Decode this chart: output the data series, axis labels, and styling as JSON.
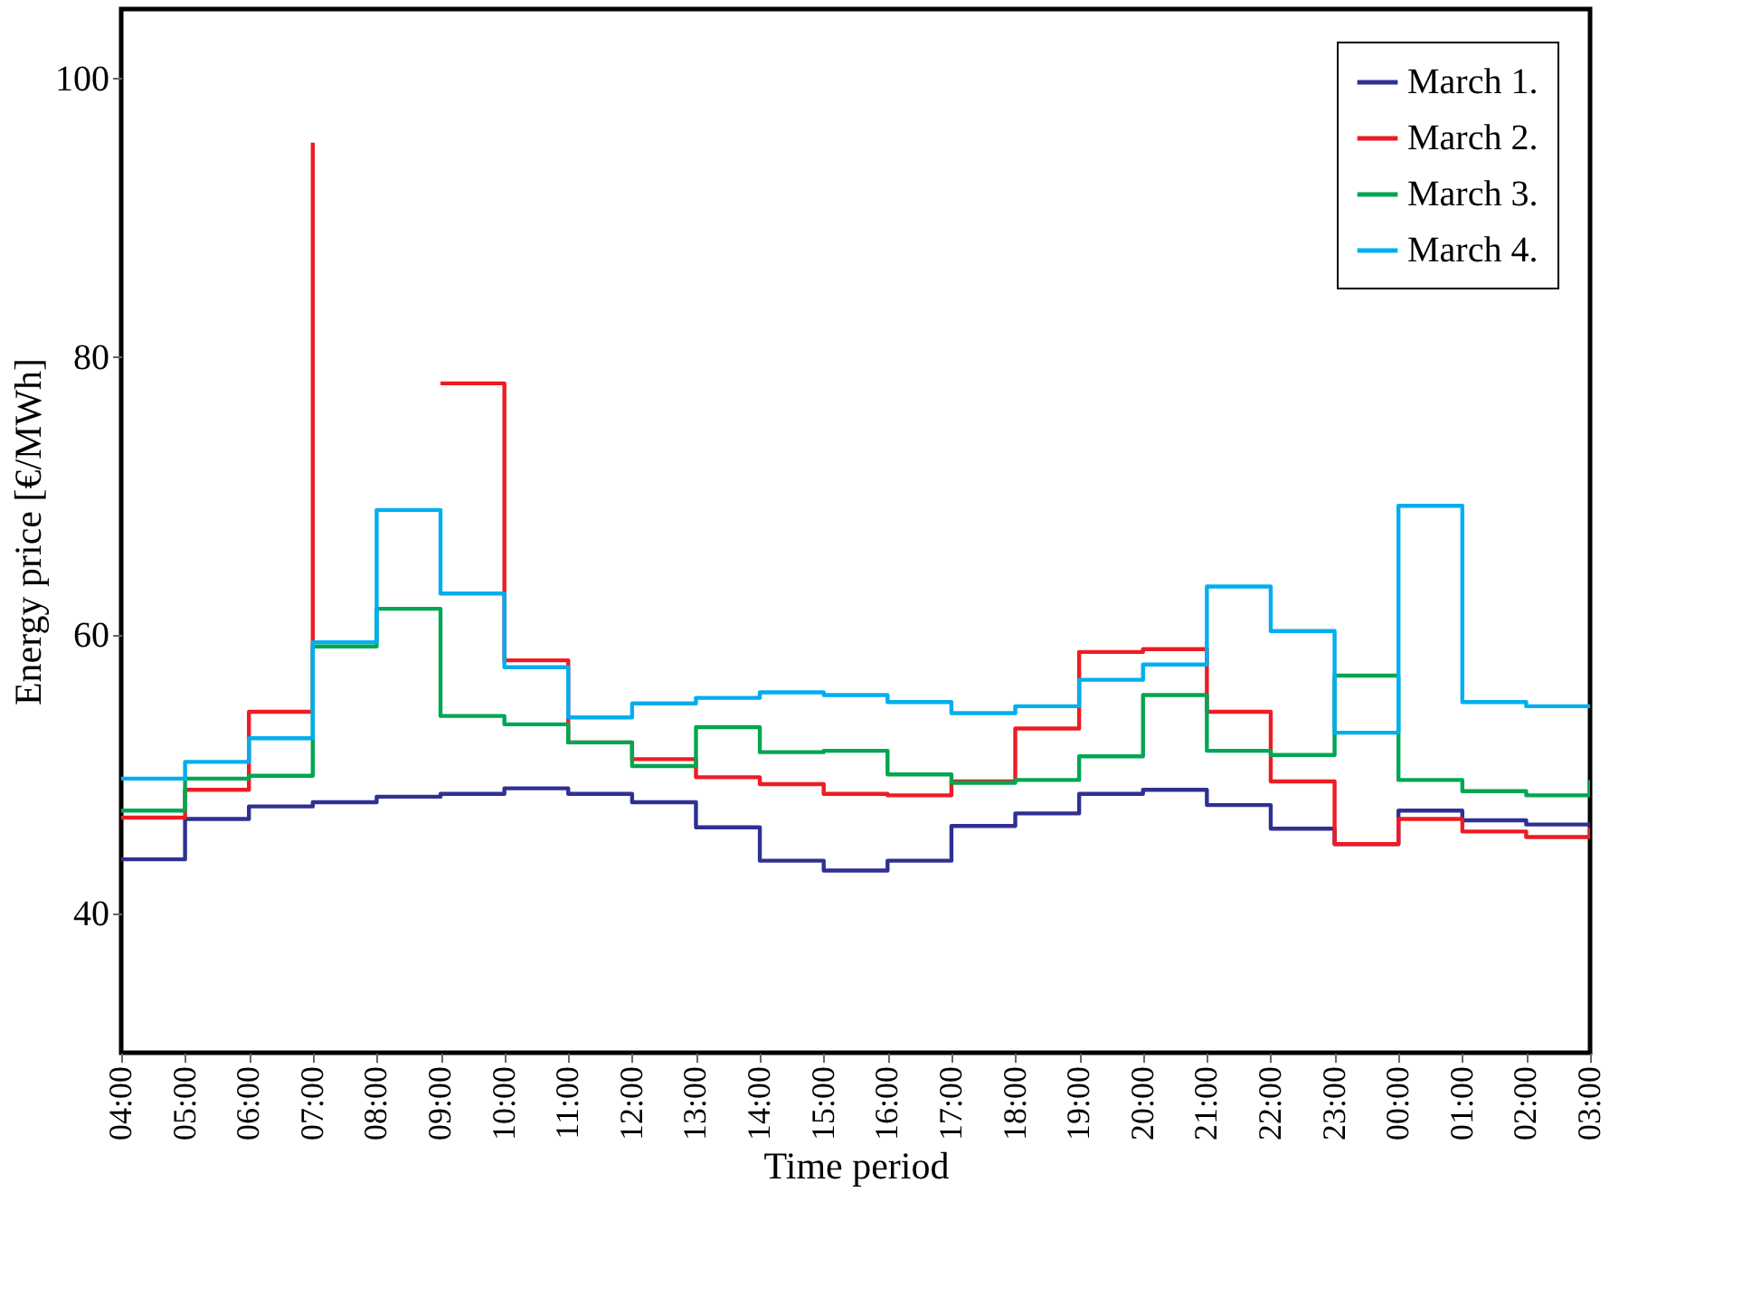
{
  "chart_data": {
    "type": "step",
    "xlabel": "Time period",
    "ylabel": "Energy price [€/MWh]",
    "categories": [
      "04:00",
      "05:00",
      "06:00",
      "07:00",
      "08:00",
      "09:00",
      "10:00",
      "11:00",
      "12:00",
      "13:00",
      "14:00",
      "15:00",
      "16:00",
      "17:00",
      "18:00",
      "19:00",
      "20:00",
      "21:00",
      "22:00",
      "23:00",
      "00:00",
      "01:00",
      "02:00",
      "03:00"
    ],
    "series": [
      {
        "name": "March 1.",
        "color": "#2e3192",
        "values": [
          43.9,
          46.8,
          47.7,
          48.0,
          48.4,
          48.6,
          49.0,
          48.6,
          48.0,
          46.2,
          43.8,
          43.1,
          43.8,
          46.3,
          47.2,
          48.6,
          48.9,
          47.8,
          46.1,
          45.0,
          47.4,
          46.7,
          46.4,
          46.4
        ]
      },
      {
        "name": "March 2.",
        "color": "#ed1c24",
        "values": [
          46.9,
          48.9,
          54.5,
          95.4,
          null,
          78.1,
          58.2,
          52.3,
          51.1,
          49.8,
          49.3,
          48.6,
          48.5,
          49.5,
          53.3,
          58.8,
          59.0,
          54.5,
          49.5,
          45.0,
          46.8,
          45.9,
          45.5,
          46.2
        ]
      },
      {
        "name": "March 3.",
        "color": "#00a651",
        "values": [
          47.4,
          49.7,
          49.9,
          59.2,
          61.9,
          54.2,
          53.6,
          52.3,
          50.6,
          53.4,
          51.6,
          51.7,
          50.0,
          49.4,
          49.6,
          51.3,
          55.7,
          51.7,
          51.4,
          57.1,
          49.6,
          48.8,
          48.5,
          49.6
        ]
      },
      {
        "name": "March 4.",
        "color": "#00aeef",
        "values": [
          49.7,
          50.9,
          52.6,
          59.5,
          69.0,
          63.0,
          57.7,
          54.1,
          55.1,
          55.5,
          55.9,
          55.7,
          55.2,
          54.4,
          54.9,
          56.8,
          57.9,
          63.5,
          60.3,
          53.0,
          69.3,
          55.2,
          54.9,
          54.9
        ]
      }
    ],
    "ylim": [
      30,
      105
    ],
    "yticks": [
      40,
      60,
      80,
      100
    ],
    "grid": false,
    "legend": "top right",
    "marker": "none",
    "line_style": "solid"
  }
}
